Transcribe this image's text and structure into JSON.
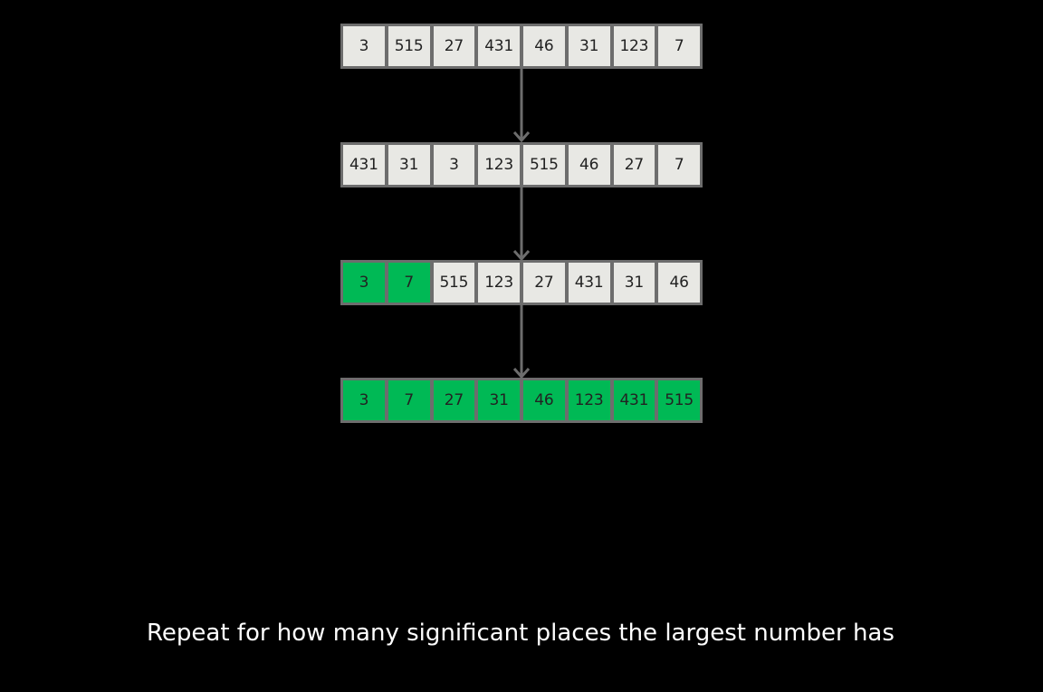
{
  "colors": {
    "background": "#000000",
    "cell_unsorted": "#e8e8e4",
    "cell_sorted": "#00b955",
    "border": "#6d6d6d",
    "arrow": "#6d6d6d"
  },
  "rows": [
    {
      "cells": [
        {
          "value": "3",
          "sorted": false
        },
        {
          "value": "515",
          "sorted": false
        },
        {
          "value": "27",
          "sorted": false
        },
        {
          "value": "431",
          "sorted": false
        },
        {
          "value": "46",
          "sorted": false
        },
        {
          "value": "31",
          "sorted": false
        },
        {
          "value": "123",
          "sorted": false
        },
        {
          "value": "7",
          "sorted": false
        }
      ]
    },
    {
      "cells": [
        {
          "value": "431",
          "sorted": false
        },
        {
          "value": "31",
          "sorted": false
        },
        {
          "value": "3",
          "sorted": false
        },
        {
          "value": "123",
          "sorted": false
        },
        {
          "value": "515",
          "sorted": false
        },
        {
          "value": "46",
          "sorted": false
        },
        {
          "value": "27",
          "sorted": false
        },
        {
          "value": "7",
          "sorted": false
        }
      ]
    },
    {
      "cells": [
        {
          "value": "3",
          "sorted": true
        },
        {
          "value": "7",
          "sorted": true
        },
        {
          "value": "515",
          "sorted": false
        },
        {
          "value": "123",
          "sorted": false
        },
        {
          "value": "27",
          "sorted": false
        },
        {
          "value": "431",
          "sorted": false
        },
        {
          "value": "31",
          "sorted": false
        },
        {
          "value": "46",
          "sorted": false
        }
      ]
    },
    {
      "cells": [
        {
          "value": "3",
          "sorted": true
        },
        {
          "value": "7",
          "sorted": true
        },
        {
          "value": "27",
          "sorted": true
        },
        {
          "value": "31",
          "sorted": true
        },
        {
          "value": "46",
          "sorted": true
        },
        {
          "value": "123",
          "sorted": true
        },
        {
          "value": "431",
          "sorted": true
        },
        {
          "value": "515",
          "sorted": true
        }
      ]
    }
  ],
  "caption": "Repeat for how many significant places the largest number has"
}
